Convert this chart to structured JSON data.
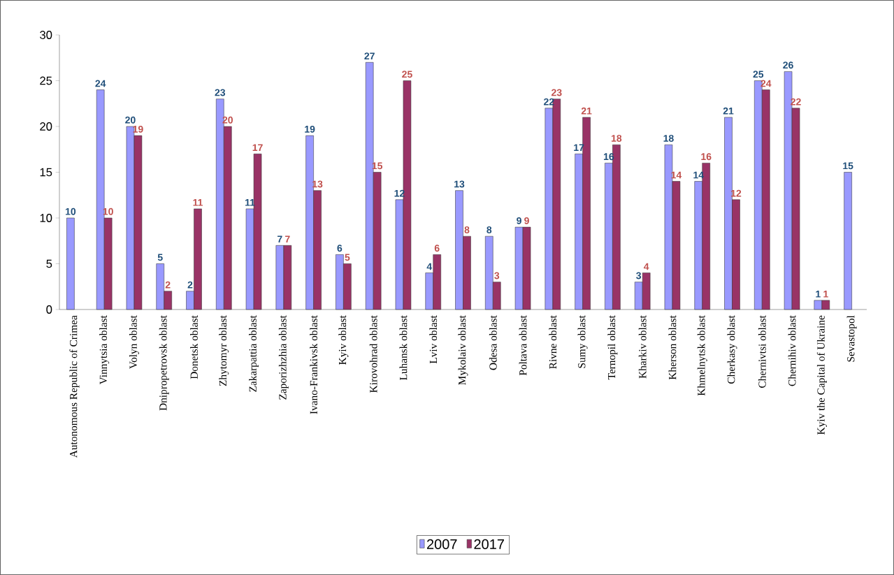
{
  "chart_data": {
    "type": "bar",
    "categories": [
      "Autonomous Republic of Crimea",
      "Vinnytsia oblast",
      "Volyn oblast",
      "Dnipropetrovsk oblast",
      "Donetsk oblast",
      "Zhytomyr oblast",
      "Zakarpattia oblast",
      "Zaporizhzhia oblast",
      "Ivano-Frankivsk oblast",
      "Kyiv oblast",
      "Kirovohrad oblast",
      "Luhansk oblast",
      "Lviv oblast",
      "Mykolaiv oblast",
      "Odesa oblast",
      "Poltava oblast",
      "Rivne oblast",
      "Sumy oblast",
      "Ternopil oblast",
      "Kharkiv oblast",
      "Kherson oblast",
      "Khmelnytsk oblast",
      "Cherkasy oblast",
      "Chernivtsi oblast",
      "Chernihiv oblast",
      "Kyiv the Capital of Ukraine",
      "Sevastopol"
    ],
    "series": [
      {
        "name": "2007",
        "color": "#9999ff",
        "values": [
          10,
          24,
          20,
          5,
          2,
          23,
          11,
          7,
          19,
          6,
          27,
          12,
          4,
          13,
          8,
          9,
          22,
          17,
          16,
          3,
          18,
          14,
          21,
          25,
          26,
          1,
          15
        ]
      },
      {
        "name": "2017",
        "color": "#993366",
        "values": [
          null,
          10,
          19,
          2,
          11,
          20,
          17,
          7,
          13,
          5,
          15,
          25,
          6,
          8,
          3,
          9,
          23,
          21,
          18,
          4,
          14,
          16,
          12,
          24,
          22,
          1,
          null
        ]
      }
    ],
    "ylim": [
      0,
      30
    ],
    "yticks": [
      0,
      5,
      10,
      15,
      20,
      25,
      30
    ],
    "data_labels": true,
    "legend": "bottom"
  }
}
